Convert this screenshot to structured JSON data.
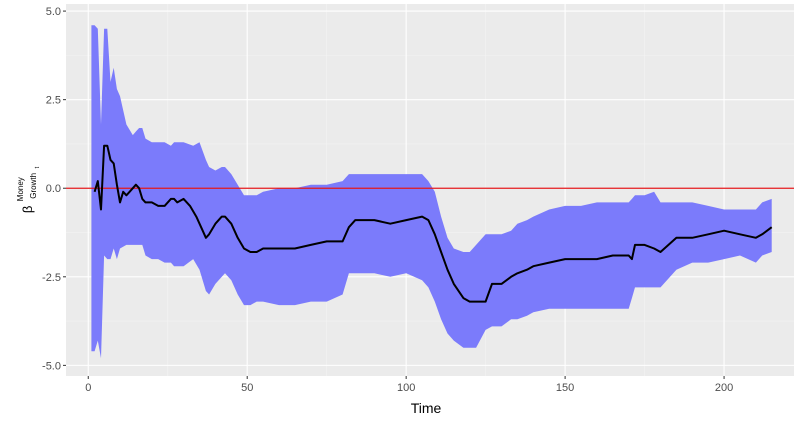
{
  "chart_data": {
    "type": "line",
    "title": "",
    "xlabel": "Time",
    "ylabel": {
      "symbol": "β",
      "superscript": "Money",
      "subscript": "Growth",
      "sub_subscript": "t"
    },
    "xlim": [
      -7,
      222
    ],
    "ylim": [
      -5.3,
      5.2
    ],
    "x_ticks": [
      0,
      50,
      100,
      150,
      200
    ],
    "x_tick_labels": [
      "0",
      "50",
      "100",
      "150",
      "200"
    ],
    "y_ticks": [
      5.0,
      2.5,
      0.0,
      -2.5,
      -5.0
    ],
    "y_tick_labels": [
      "5.0",
      "2.5",
      "0.0",
      "-2.5",
      "-5.0"
    ],
    "grid": true,
    "reference_line": {
      "y": 0,
      "color": "#e31a1c"
    },
    "colors": {
      "panel": "#ebebeb",
      "grid_major": "#ffffff",
      "grid_minor": "#f3f3f3",
      "band": "#7b7bfb",
      "line": "#000000"
    },
    "series": [
      {
        "type": "line",
        "x": [
          2,
          3,
          4,
          5,
          6,
          7,
          8,
          9,
          10,
          11,
          12,
          13,
          14,
          15,
          16,
          17,
          18,
          20,
          22,
          24,
          26,
          27,
          28,
          30,
          32,
          34,
          36,
          37,
          38,
          40,
          42,
          43,
          45,
          47,
          49,
          51,
          53,
          55,
          60,
          65,
          70,
          75,
          80,
          82,
          84,
          86,
          88,
          90,
          95,
          100,
          105,
          107,
          109,
          111,
          113,
          115,
          118,
          120,
          122,
          125,
          127,
          130,
          133,
          135,
          138,
          140,
          145,
          150,
          155,
          160,
          165,
          170,
          171,
          172,
          175,
          178,
          180,
          185,
          190,
          195,
          200,
          205,
          210,
          212,
          215
        ],
        "values": [
          -0.1,
          0.2,
          -0.6,
          1.2,
          1.2,
          0.8,
          0.7,
          0.1,
          -0.4,
          -0.1,
          -0.2,
          -0.1,
          0.0,
          0.1,
          0.0,
          -0.3,
          -0.4,
          -0.4,
          -0.5,
          -0.5,
          -0.3,
          -0.3,
          -0.4,
          -0.3,
          -0.5,
          -0.8,
          -1.2,
          -1.4,
          -1.3,
          -1.0,
          -0.8,
          -0.8,
          -1.0,
          -1.4,
          -1.7,
          -1.8,
          -1.8,
          -1.7,
          -1.7,
          -1.7,
          -1.6,
          -1.5,
          -1.5,
          -1.1,
          -0.9,
          -0.9,
          -0.9,
          -0.9,
          -1.0,
          -0.9,
          -0.8,
          -0.9,
          -1.3,
          -1.8,
          -2.3,
          -2.7,
          -3.1,
          -3.2,
          -3.2,
          -3.2,
          -2.7,
          -2.7,
          -2.5,
          -2.4,
          -2.3,
          -2.2,
          -2.1,
          -2.0,
          -2.0,
          -2.0,
          -1.9,
          -1.9,
          -2.0,
          -1.6,
          -1.6,
          -1.7,
          -1.8,
          -1.4,
          -1.4,
          -1.3,
          -1.2,
          -1.3,
          -1.4,
          -1.3,
          -1.1
        ]
      },
      {
        "type": "band",
        "x": [
          1,
          2,
          3,
          4,
          5,
          6,
          7,
          8,
          9,
          10,
          12,
          14,
          15,
          16,
          17,
          18,
          20,
          22,
          24,
          26,
          27,
          30,
          33,
          35,
          37,
          38,
          40,
          42,
          43,
          45,
          47,
          49,
          51,
          53,
          55,
          60,
          65,
          70,
          75,
          80,
          82,
          84,
          86,
          88,
          90,
          95,
          100,
          105,
          107,
          109,
          111,
          113,
          115,
          118,
          120,
          122,
          125,
          127,
          130,
          133,
          135,
          138,
          140,
          145,
          150,
          155,
          160,
          165,
          170,
          171,
          172,
          175,
          178,
          180,
          185,
          190,
          195,
          200,
          205,
          210,
          212,
          215
        ],
        "lower": [
          -4.6,
          -4.6,
          -4.3,
          -4.8,
          -1.9,
          -2.0,
          -2.0,
          -1.7,
          -2.0,
          -1.7,
          -1.6,
          -1.6,
          -1.6,
          -1.6,
          -1.6,
          -1.9,
          -2.0,
          -2.0,
          -2.1,
          -2.1,
          -2.2,
          -2.2,
          -2.0,
          -2.3,
          -2.9,
          -3.0,
          -2.7,
          -2.5,
          -2.4,
          -2.6,
          -3.0,
          -3.3,
          -3.3,
          -3.2,
          -3.2,
          -3.3,
          -3.3,
          -3.2,
          -3.2,
          -3.0,
          -2.4,
          -2.4,
          -2.4,
          -2.4,
          -2.4,
          -2.5,
          -2.4,
          -2.6,
          -2.8,
          -3.2,
          -3.7,
          -4.1,
          -4.3,
          -4.5,
          -4.5,
          -4.5,
          -4.0,
          -3.9,
          -3.9,
          -3.7,
          -3.7,
          -3.6,
          -3.5,
          -3.4,
          -3.4,
          -3.4,
          -3.4,
          -3.4,
          -3.4,
          -3.1,
          -2.8,
          -2.8,
          -2.8,
          -2.8,
          -2.3,
          -2.1,
          -2.1,
          -2.0,
          -1.9,
          -2.1,
          -1.9,
          -1.8
        ],
        "upper": [
          4.6,
          4.6,
          4.5,
          1.8,
          4.5,
          4.5,
          3.0,
          3.4,
          2.8,
          2.6,
          1.8,
          1.5,
          1.6,
          1.7,
          1.7,
          1.4,
          1.3,
          1.3,
          1.3,
          1.2,
          1.3,
          1.3,
          1.2,
          1.3,
          0.8,
          0.6,
          0.5,
          0.6,
          0.6,
          0.4,
          0.1,
          -0.2,
          -0.2,
          -0.2,
          -0.1,
          0.0,
          0.0,
          0.1,
          0.1,
          0.2,
          0.4,
          0.4,
          0.4,
          0.4,
          0.4,
          0.4,
          0.4,
          0.4,
          0.2,
          -0.1,
          -0.8,
          -1.4,
          -1.7,
          -1.8,
          -1.8,
          -1.6,
          -1.3,
          -1.3,
          -1.3,
          -1.2,
          -1.0,
          -0.9,
          -0.8,
          -0.6,
          -0.5,
          -0.5,
          -0.4,
          -0.4,
          -0.4,
          -0.3,
          -0.2,
          -0.2,
          -0.1,
          -0.4,
          -0.4,
          -0.4,
          -0.5,
          -0.6,
          -0.6,
          -0.6,
          -0.4,
          -0.3
        ]
      }
    ]
  }
}
